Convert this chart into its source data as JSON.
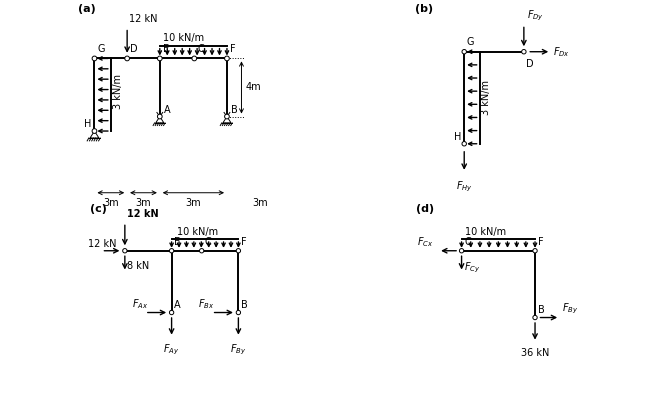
{
  "bg_color": "#ffffff",
  "lc": "#000000",
  "fs": 7,
  "fs_label": 8,
  "panels": [
    "a",
    "b",
    "c",
    "d"
  ]
}
